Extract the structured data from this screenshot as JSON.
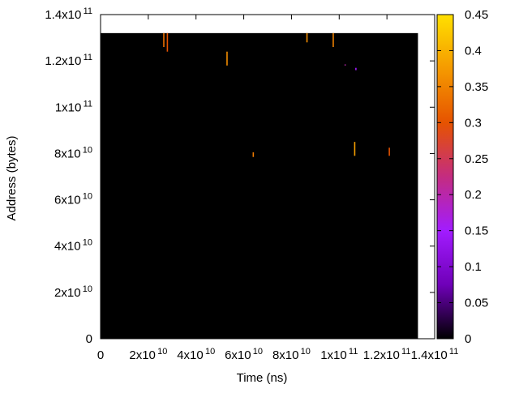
{
  "chart_data": {
    "type": "heatmap",
    "xlabel": "Time (ns)",
    "ylabel": "Address (bytes)",
    "xlim": [
      0,
      140000000000.0
    ],
    "ylim": [
      0,
      140000000000.0
    ],
    "x_ticks": [
      {
        "value": 0,
        "base": "0",
        "exp": ""
      },
      {
        "value": 20000000000.0,
        "base": "2x10",
        "exp": "10"
      },
      {
        "value": 40000000000.0,
        "base": "4x10",
        "exp": "10"
      },
      {
        "value": 60000000000.0,
        "base": "6x10",
        "exp": "10"
      },
      {
        "value": 80000000000.0,
        "base": "8x10",
        "exp": "10"
      },
      {
        "value": 100000000000.0,
        "base": "1x10",
        "exp": "11"
      },
      {
        "value": 120000000000.0,
        "base": "1.2x10",
        "exp": "11"
      },
      {
        "value": 140000000000.0,
        "base": "1.4x10",
        "exp": "11"
      }
    ],
    "y_ticks": [
      {
        "value": 0,
        "base": "0",
        "exp": ""
      },
      {
        "value": 20000000000.0,
        "base": "2x10",
        "exp": "10"
      },
      {
        "value": 40000000000.0,
        "base": "4x10",
        "exp": "10"
      },
      {
        "value": 60000000000.0,
        "base": "6x10",
        "exp": "10"
      },
      {
        "value": 80000000000.0,
        "base": "8x10",
        "exp": "10"
      },
      {
        "value": 100000000000.0,
        "base": "1x10",
        "exp": "11"
      },
      {
        "value": 120000000000.0,
        "base": "1.2x10",
        "exp": "11"
      },
      {
        "value": 140000000000.0,
        "base": "1.4x10",
        "exp": "11"
      }
    ],
    "data_extent": {
      "x": [
        0,
        133000000000.0
      ],
      "y": [
        0,
        132000000000.0
      ]
    },
    "background_value": 0,
    "colorbar": {
      "range": [
        0,
        0.45
      ],
      "ticks": [
        "0",
        "0.05",
        "0.1",
        "0.15",
        "0.2",
        "0.25",
        "0.3",
        "0.35",
        "0.4",
        "0.45"
      ],
      "palette": [
        "#000000",
        "#6f00b8",
        "#a21cff",
        "#c42c80",
        "#e65300",
        "#f59a00",
        "#ffe000"
      ]
    },
    "cells": [
      {
        "x": 26500000000.0,
        "y_from": 126000000000.0,
        "y_to": 132000000000.0,
        "value": 0.33
      },
      {
        "x": 28000000000.0,
        "y_from": 124000000000.0,
        "y_to": 132000000000.0,
        "value": 0.3
      },
      {
        "x": 53000000000.0,
        "y_from": 118000000000.0,
        "y_to": 124000000000.0,
        "value": 0.36
      },
      {
        "x": 64000000000.0,
        "y_from": 78500000000.0,
        "y_to": 80500000000.0,
        "value": 0.34
      },
      {
        "x": 86500000000.0,
        "y_from": 128000000000.0,
        "y_to": 132000000000.0,
        "value": 0.36
      },
      {
        "x": 97500000000.0,
        "y_from": 126000000000.0,
        "y_to": 132000000000.0,
        "value": 0.35
      },
      {
        "x": 102500000000.0,
        "y_from": 118000000000.0,
        "y_to": 118500000000.0,
        "value": 0.2
      },
      {
        "x": 106500000000.0,
        "y_from": 79000000000.0,
        "y_to": 85000000000.0,
        "value": 0.38
      },
      {
        "x": 107000000000.0,
        "y_from": 116000000000.0,
        "y_to": 117000000000.0,
        "value": 0.15
      },
      {
        "x": 121000000000.0,
        "y_from": 79000000000.0,
        "y_to": 82500000000.0,
        "value": 0.3
      }
    ]
  }
}
